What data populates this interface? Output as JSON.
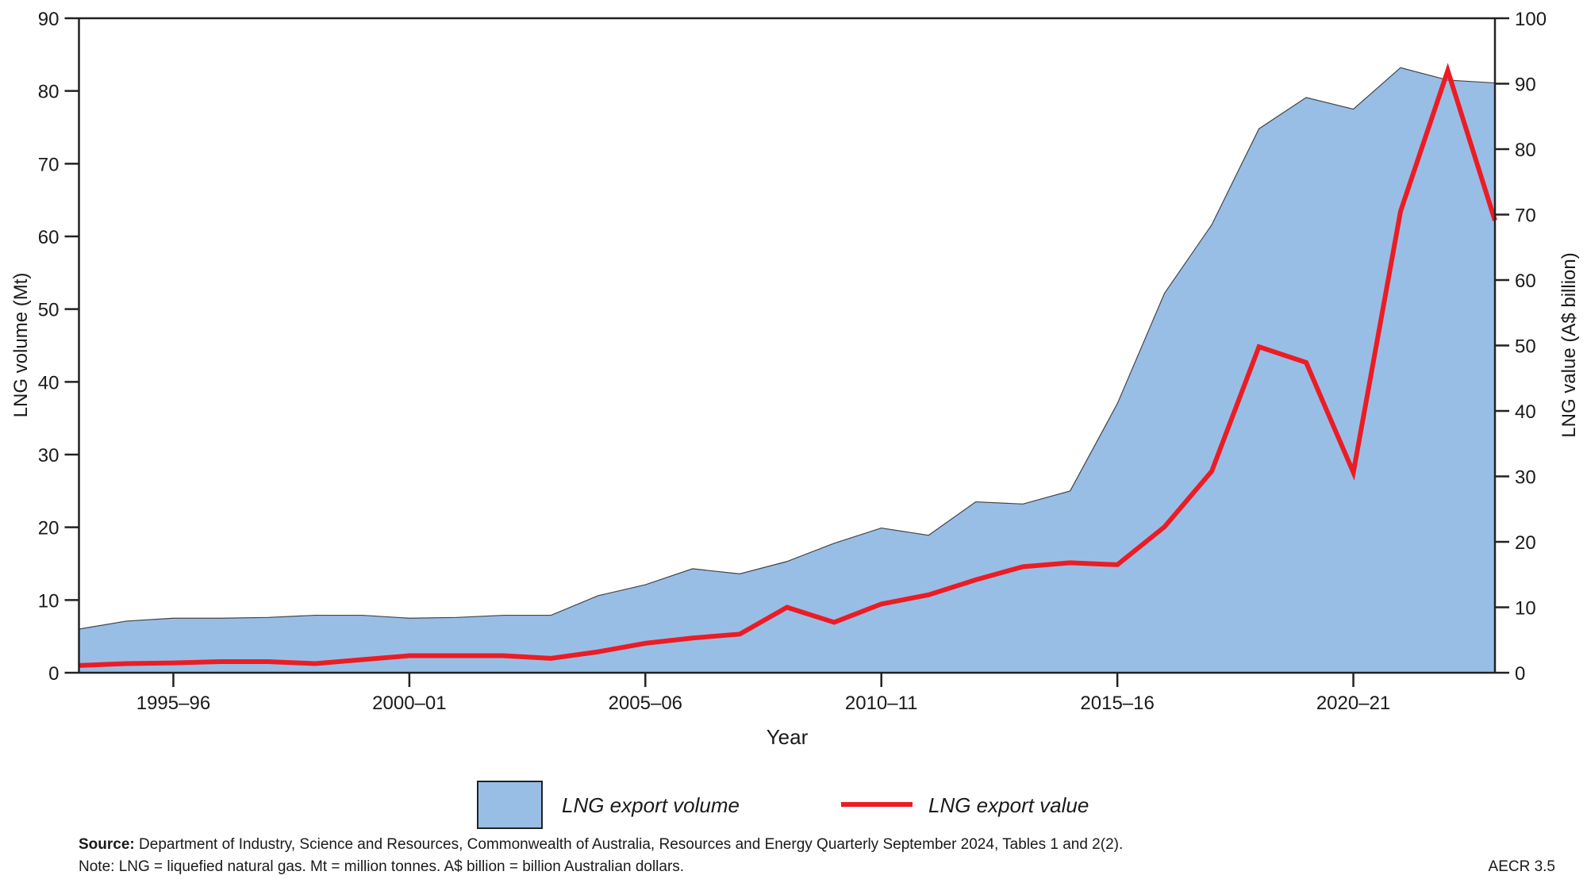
{
  "chart_data": {
    "type": "area+line",
    "xlabel": "Year",
    "ylabel_left": "LNG volume (Mt)",
    "ylabel_right": "LNG value (A$ billion)",
    "ylim_left": [
      0,
      90
    ],
    "ylim_right": [
      0,
      100
    ],
    "yticks_left": [
      0,
      10,
      20,
      30,
      40,
      50,
      60,
      70,
      80,
      90
    ],
    "yticks_right": [
      0,
      10,
      20,
      30,
      40,
      50,
      60,
      70,
      80,
      90,
      100
    ],
    "x_tick_labels": [
      "1995–96",
      "2000–01",
      "2005–06",
      "2010–11",
      "2015–16",
      "2020–21"
    ],
    "x": [
      "1993–94",
      "1994–95",
      "1995–96",
      "1996–97",
      "1997–98",
      "1998–99",
      "1999–00",
      "2000–01",
      "2001–02",
      "2002–03",
      "2003–04",
      "2004–05",
      "2005–06",
      "2006–07",
      "2007–08",
      "2008–09",
      "2009–10",
      "2010–11",
      "2011–12",
      "2012–13",
      "2013–14",
      "2014–15",
      "2015–16",
      "2016–17",
      "2017–18",
      "2018–19",
      "2019–20",
      "2020–21",
      "2021–22",
      "2022–23",
      "2023–24"
    ],
    "grid": false,
    "legend_placement": "bottom",
    "series": [
      {
        "name": "LNG export volume",
        "type": "area",
        "axis": "left",
        "color": "#99bee6",
        "values": [
          6.0,
          7.1,
          7.5,
          7.5,
          7.6,
          7.9,
          7.9,
          7.5,
          7.6,
          7.9,
          7.9,
          10.6,
          12.1,
          14.3,
          13.6,
          15.3,
          17.8,
          19.9,
          18.9,
          23.5,
          23.2,
          25.0,
          37.0,
          52.2,
          61.6,
          74.8,
          79.1,
          77.5,
          83.2,
          81.5,
          81.1
        ]
      },
      {
        "name": "LNG export value",
        "type": "line",
        "axis": "right",
        "color": "#ec1c24",
        "values": [
          1.1,
          1.4,
          1.5,
          1.7,
          1.7,
          1.4,
          2.0,
          2.6,
          2.6,
          2.6,
          2.2,
          3.2,
          4.5,
          5.3,
          5.9,
          10.0,
          7.7,
          10.5,
          11.9,
          14.2,
          16.2,
          16.8,
          16.5,
          22.3,
          30.8,
          49.8,
          47.4,
          30.6,
          70.5,
          92.0,
          69.1
        ]
      }
    ]
  },
  "footer": {
    "source_label": "Source:",
    "source_text": " Department of Industry, Science and Resources, Commonwealth of Australia, Resources and Energy Quarterly September 2024, Tables 1 and 2(2).",
    "note": "Note: LNG = liquefied natural gas. Mt = million tonnes. A$ billion = billion Australian dollars.",
    "figure_id": "AECR 3.5"
  }
}
